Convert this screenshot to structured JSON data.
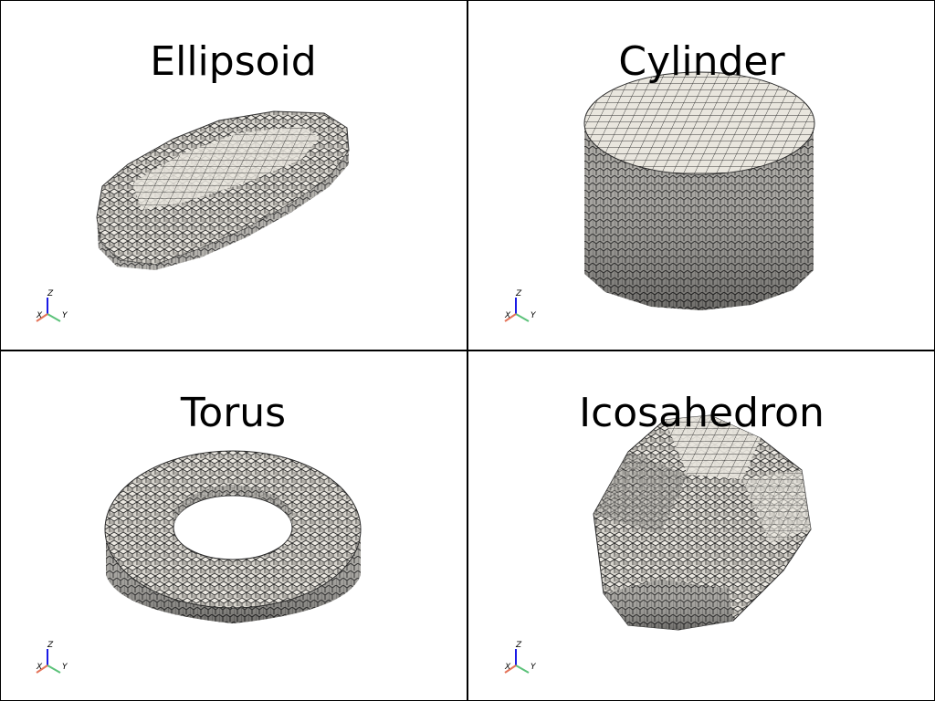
{
  "panes": [
    {
      "title": "Ellipsoid",
      "shape": "ellipsoid-icon"
    },
    {
      "title": "Cylinder",
      "shape": "cylinder-icon"
    },
    {
      "title": "Torus",
      "shape": "torus-icon"
    },
    {
      "title": "Icosahedron",
      "shape": "icosahedron-icon"
    }
  ],
  "axes": {
    "x": "X",
    "y": "Y",
    "z": "Z"
  },
  "colors": {
    "voxel_face": "#d9d6cf",
    "voxel_edge": "#222222",
    "axis_x": "#e4745a",
    "axis_y": "#5cc27a",
    "axis_z": "#1a1ae6"
  }
}
